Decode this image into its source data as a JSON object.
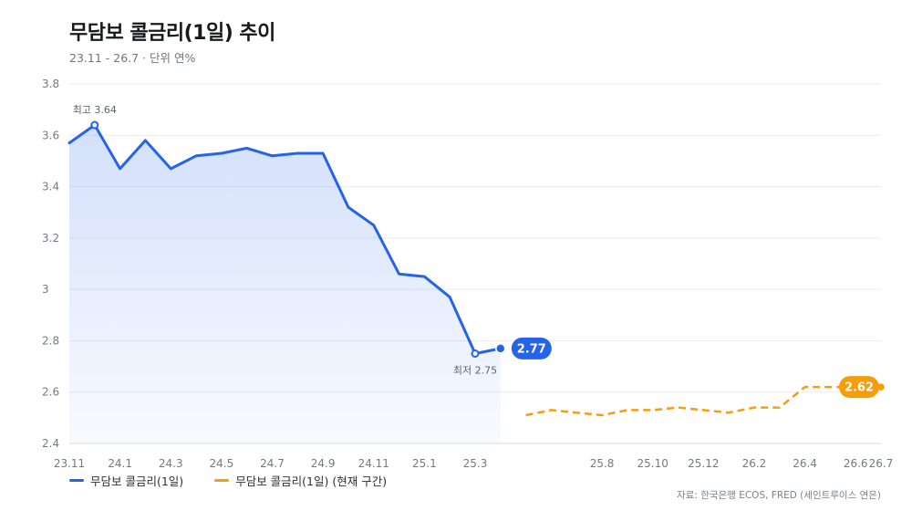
{
  "header": {
    "title": "무담보 콜금리(1일) 추이",
    "subtitle": "23.11 - 26.7 · 단위 연%"
  },
  "source": "자료: 한국은행 ECOS, FRED (세인트루이스 연은)",
  "colors": {
    "series_actual": "#2563eb",
    "series_current": "#f59e0b",
    "grid": "#e9ecf1",
    "axis_text": "#737a83"
  },
  "chart_data": {
    "type": "line",
    "title": "무담보 콜금리(1일) 추이",
    "xlabel": "",
    "ylabel": "",
    "ylim": [
      2.4,
      3.8
    ],
    "yticks": [
      2.4,
      2.6,
      2.8,
      3,
      3.2,
      3.4,
      3.6,
      3.8
    ],
    "ytick_labels": [
      "2.4",
      "2.6",
      "2.8",
      "3",
      "3.2",
      "3.4",
      "3.6",
      "3.8"
    ],
    "x_categories": [
      "23.11",
      "23.12",
      "24.1",
      "24.2",
      "24.3",
      "24.4",
      "24.5",
      "24.6",
      "24.7",
      "24.8",
      "24.9",
      "24.10",
      "24.11",
      "24.12",
      "25.1",
      "25.2",
      "25.3",
      "25.4",
      "25.5",
      "25.6",
      "25.7",
      "25.8",
      "25.9",
      "25.10",
      "25.11",
      "25.12",
      "26.1",
      "26.2",
      "26.3",
      "26.4",
      "26.5",
      "26.6",
      "26.7"
    ],
    "x_tick_labels": [
      "23.11",
      "24.1",
      "24.3",
      "24.5",
      "24.7",
      "24.9",
      "24.11",
      "25.1",
      "25.3",
      "25.8",
      "25.10",
      "25.12",
      "26.2",
      "26.4",
      "26.6",
      "26.7"
    ],
    "grid": true,
    "legend_position": "bottom-left",
    "series": [
      {
        "name": "무담보 콜금리(1일)",
        "style": "solid-area",
        "x": [
          "23.11",
          "23.12",
          "24.1",
          "24.2",
          "24.3",
          "24.4",
          "24.5",
          "24.6",
          "24.7",
          "24.8",
          "24.9",
          "24.10",
          "24.11",
          "24.12",
          "25.1",
          "25.2",
          "25.3",
          "25.4"
        ],
        "values": [
          3.57,
          3.64,
          3.47,
          3.58,
          3.47,
          3.52,
          3.53,
          3.55,
          3.52,
          3.53,
          3.53,
          3.32,
          3.25,
          3.06,
          3.05,
          2.97,
          2.75,
          2.77
        ]
      },
      {
        "name": "무담보 콜금리(1일) (현재 구간)",
        "style": "dashed",
        "x": [
          "25.5",
          "25.6",
          "25.7",
          "25.8",
          "25.9",
          "25.10",
          "25.11",
          "25.12",
          "26.1",
          "26.2",
          "26.3",
          "26.4",
          "26.5",
          "26.6",
          "26.7"
        ],
        "values": [
          2.51,
          2.53,
          2.52,
          2.51,
          2.53,
          2.53,
          2.54,
          2.53,
          2.52,
          2.54,
          2.54,
          2.62,
          2.62,
          2.62,
          2.62
        ]
      }
    ],
    "annotations": {
      "max_label": "최고 3.64",
      "min_label": "최저 2.75",
      "last_actual": "2.77",
      "last_current": "2.62"
    }
  }
}
